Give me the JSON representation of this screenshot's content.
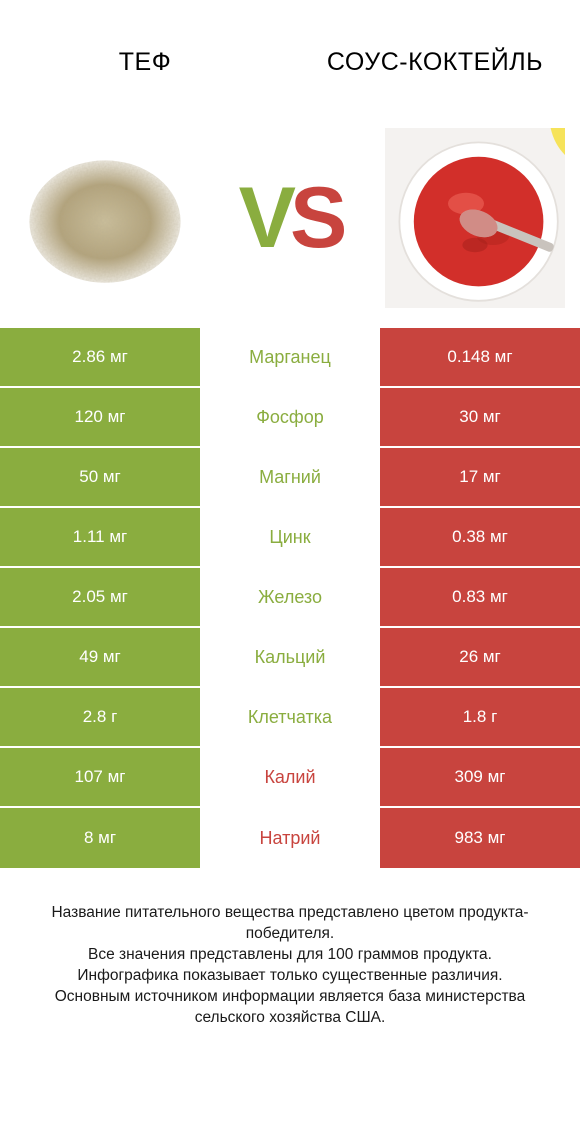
{
  "colors": {
    "left": "#8aad3f",
    "right": "#c8443e",
    "bg": "#ffffff",
    "text": "#1a1a1a"
  },
  "header": {
    "left_title": "ТЕФ",
    "right_title": "СОУС-КОКТЕЙЛЬ",
    "vs_v": "V",
    "vs_s": "S"
  },
  "rows": [
    {
      "nutrient": "Марганец",
      "left": "2.86 мг",
      "right": "0.148 мг",
      "winner": "left"
    },
    {
      "nutrient": "Фосфор",
      "left": "120 мг",
      "right": "30 мг",
      "winner": "left"
    },
    {
      "nutrient": "Магний",
      "left": "50 мг",
      "right": "17 мг",
      "winner": "left"
    },
    {
      "nutrient": "Цинк",
      "left": "1.11 мг",
      "right": "0.38 мг",
      "winner": "left"
    },
    {
      "nutrient": "Железо",
      "left": "2.05 мг",
      "right": "0.83 мг",
      "winner": "left"
    },
    {
      "nutrient": "Кальций",
      "left": "49 мг",
      "right": "26 мг",
      "winner": "left"
    },
    {
      "nutrient": "Клетчатка",
      "left": "2.8 г",
      "right": "1.8 г",
      "winner": "left"
    },
    {
      "nutrient": "Калий",
      "left": "107 мг",
      "right": "309 мг",
      "winner": "right"
    },
    {
      "nutrient": "Натрий",
      "left": "8 мг",
      "right": "983 мг",
      "winner": "right"
    }
  ],
  "footer": {
    "line1": "Название питательного вещества представлено цветом продукта-победителя.",
    "line2": "Все значения представлены для 100 граммов продукта.",
    "line3": "Инфографика показывает только существенные различия.",
    "line4": "Основным источником информации является база министерства сельского хозяйства США."
  }
}
